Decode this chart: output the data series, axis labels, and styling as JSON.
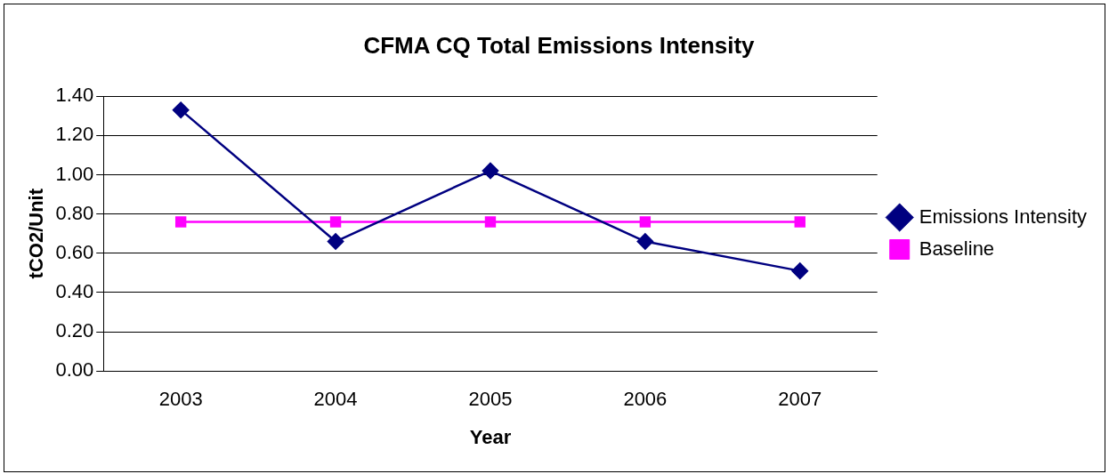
{
  "chart_data": {
    "type": "line",
    "title": "CFMA CQ Total Emissions Intensity",
    "xlabel": "Year",
    "ylabel": "tCO2/Unit",
    "categories": [
      "2003",
      "2004",
      "2005",
      "2006",
      "2007"
    ],
    "series": [
      {
        "name": "Emissions Intensity",
        "color": "#000080",
        "marker": "diamond",
        "values": [
          1.33,
          0.66,
          1.02,
          0.66,
          0.51
        ]
      },
      {
        "name": "Baseline",
        "color": "#ff00ff",
        "marker": "square",
        "values": [
          0.76,
          0.76,
          0.76,
          0.76,
          0.76
        ]
      }
    ],
    "ylim": [
      0,
      1.4
    ],
    "yticks": [
      {
        "value": 0,
        "label": "0.00"
      },
      {
        "value": 0.2,
        "label": "0.20"
      },
      {
        "value": 0.4,
        "label": "0.40"
      },
      {
        "value": 0.6,
        "label": "0.60"
      },
      {
        "value": 0.8,
        "label": "0.80"
      },
      {
        "value": 1,
        "label": "1.00"
      },
      {
        "value": 1.2,
        "label": "1.20"
      },
      {
        "value": 1.4,
        "label": "1.40"
      }
    ],
    "grid": "y",
    "legend": "right"
  }
}
